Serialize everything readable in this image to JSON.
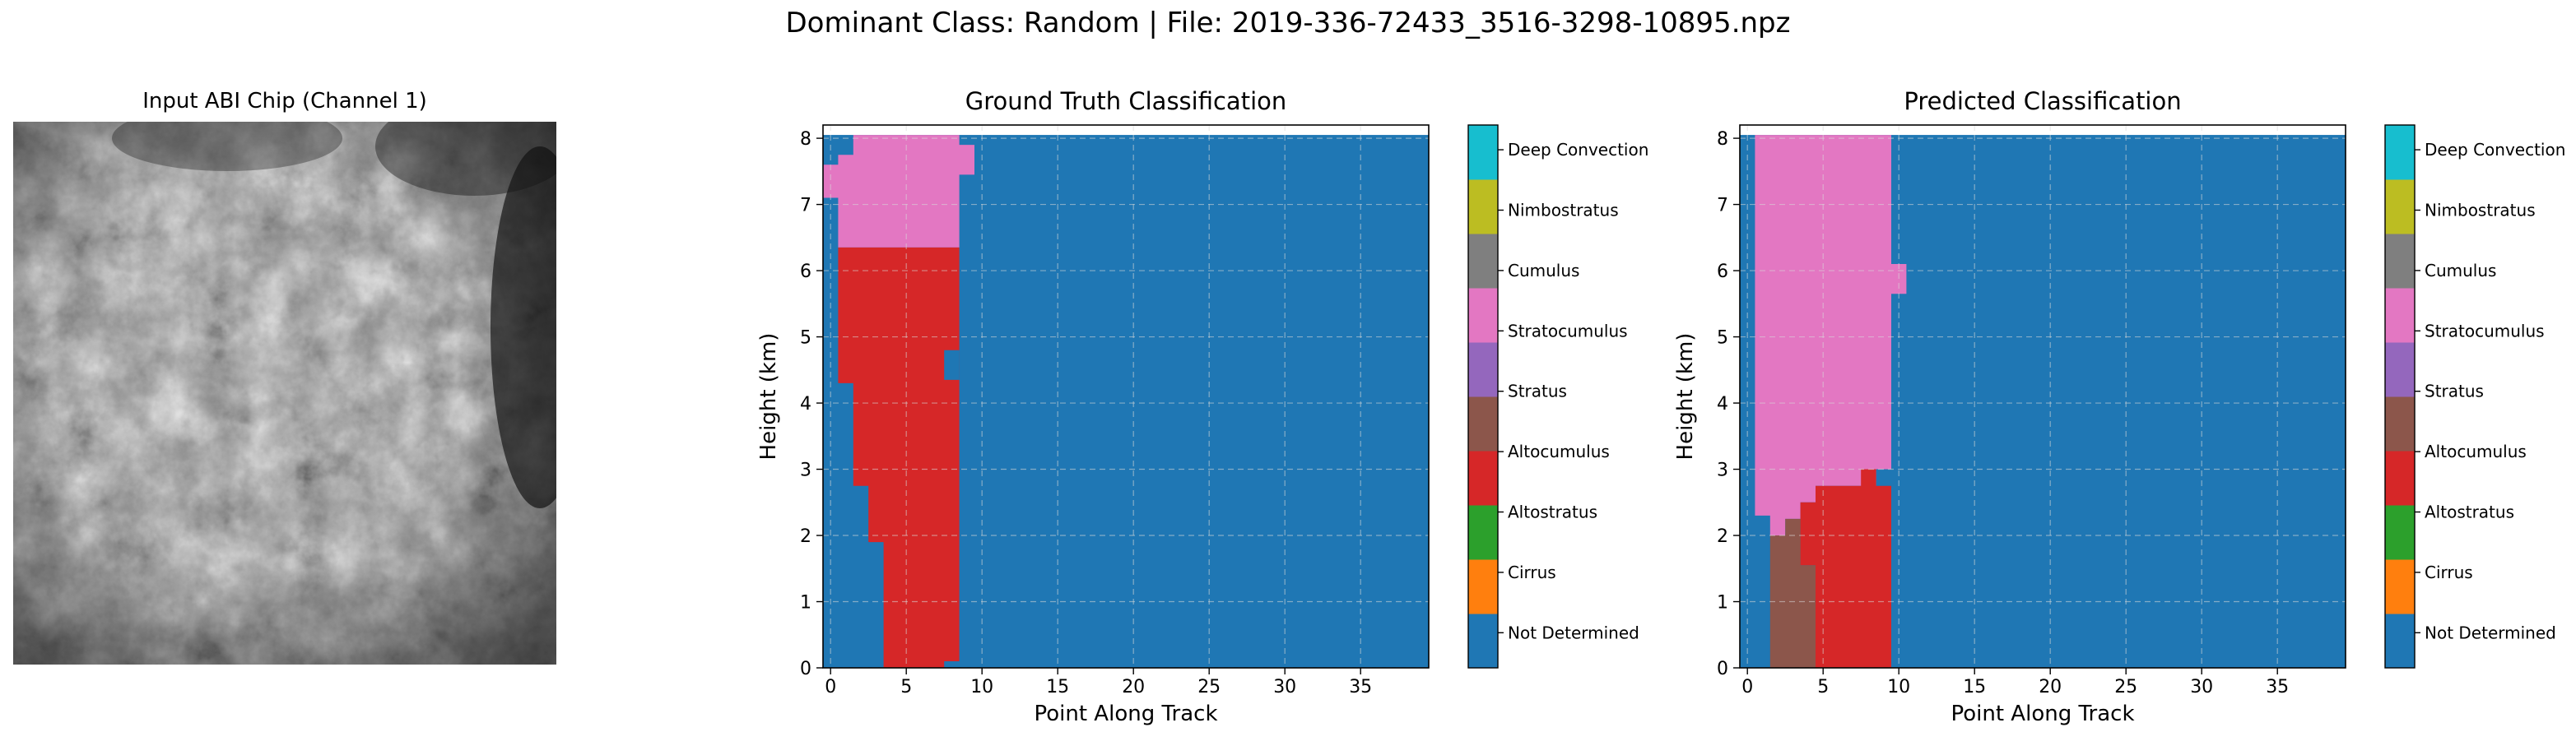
{
  "figure": {
    "suptitle": "Dominant Class: Random | File: 2019-336-72433_3516-3298-10895.npz",
    "chip_title": "Input ABI Chip (Channel 1)"
  },
  "colors": {
    "Not Determined": "#1f77b4",
    "Cirrus": "#ff7f0e",
    "Altostratus": "#2ca02c",
    "Altocumulus": "#d62728",
    "Stratus": "#9467bd",
    "Stratocumulus": "#8c564b",
    "Cumulus": "#e377c2",
    "Nimbostratus": "#7f7f7f",
    "Deep Convection": "#bcbd22",
    "cyan_top": "#17becf"
  },
  "chart_data": [
    {
      "type": "heatmap",
      "title": "Ground Truth Classification",
      "xlabel": "Point Along Track",
      "ylabel": "Height (km)",
      "xlim": [
        -0.5,
        39.5
      ],
      "ylim": [
        0,
        8.2
      ],
      "xticks": [
        0,
        5,
        10,
        15,
        20,
        25,
        30,
        35
      ],
      "yticks": [
        0,
        1,
        2,
        3,
        4,
        5,
        6,
        7,
        8
      ],
      "grid": true,
      "background_class": "Not Determined",
      "top_strip_ymax": 8.05,
      "regions": [
        {
          "class": "Cumulus",
          "polygon": [
            [
              1.5,
              8.05
            ],
            [
              8.5,
              8.05
            ],
            [
              8.5,
              7.9
            ],
            [
              9.5,
              7.9
            ],
            [
              9.5,
              7.45
            ],
            [
              8.5,
              7.45
            ],
            [
              8.5,
              6.35
            ],
            [
              0.5,
              6.35
            ],
            [
              0.5,
              7.1
            ],
            [
              -0.5,
              7.1
            ],
            [
              -0.5,
              7.6
            ],
            [
              0.5,
              7.6
            ],
            [
              0.5,
              7.75
            ],
            [
              1.5,
              7.75
            ]
          ]
        },
        {
          "class": "Altocumulus",
          "polygon": [
            [
              0.5,
              6.35
            ],
            [
              8.5,
              6.35
            ],
            [
              8.5,
              0.1
            ],
            [
              7.5,
              0.1
            ],
            [
              7.5,
              0
            ],
            [
              3.5,
              0
            ],
            [
              3.5,
              1.9
            ],
            [
              2.5,
              1.9
            ],
            [
              2.5,
              2.75
            ],
            [
              1.5,
              2.75
            ],
            [
              1.5,
              4.3
            ],
            [
              0.5,
              4.3
            ]
          ]
        },
        {
          "class": "Not Determined",
          "polygon": [
            [
              7.5,
              4.8
            ],
            [
              8.5,
              4.8
            ],
            [
              8.5,
              4.35
            ],
            [
              7.5,
              4.35
            ]
          ]
        }
      ],
      "legend": [
        "Not Determined",
        "Cirrus",
        "Altostratus",
        "Altocumulus",
        "Stratus",
        "Stratocumulus",
        "Cumulus",
        "Nimbostratus",
        "Deep Convection"
      ]
    },
    {
      "type": "heatmap",
      "title": "Predicted Classification",
      "xlabel": "Point Along Track",
      "ylabel": "Height (km)",
      "xlim": [
        -0.5,
        39.5
      ],
      "ylim": [
        0,
        8.2
      ],
      "xticks": [
        0,
        5,
        10,
        15,
        20,
        25,
        30,
        35
      ],
      "yticks": [
        0,
        1,
        2,
        3,
        4,
        5,
        6,
        7,
        8
      ],
      "grid": true,
      "background_class": "Not Determined",
      "top_strip_ymax": 8.05,
      "regions": [
        {
          "class": "Cumulus",
          "polygon": [
            [
              0.5,
              8.05
            ],
            [
              9.5,
              8.05
            ],
            [
              9.5,
              6.1
            ],
            [
              10.5,
              6.1
            ],
            [
              10.5,
              5.65
            ],
            [
              9.5,
              5.65
            ],
            [
              9.5,
              3.0
            ],
            [
              8.5,
              3.0
            ],
            [
              8.5,
              2.75
            ],
            [
              4.5,
              2.75
            ],
            [
              4.5,
              2.5
            ],
            [
              3.5,
              2.5
            ],
            [
              3.5,
              2.25
            ],
            [
              2.5,
              2.25
            ],
            [
              2.5,
              2.0
            ],
            [
              1.5,
              2.0
            ],
            [
              1.5,
              2.3
            ],
            [
              0.5,
              2.3
            ]
          ]
        },
        {
          "class": "Stratocumulus",
          "polygon": [
            [
              1.5,
              2.0
            ],
            [
              2.5,
              2.0
            ],
            [
              2.5,
              2.25
            ],
            [
              3.5,
              2.25
            ],
            [
              3.5,
              1.55
            ],
            [
              4.5,
              1.55
            ],
            [
              4.5,
              0
            ],
            [
              1.5,
              0
            ]
          ]
        },
        {
          "class": "Altocumulus",
          "polygon": [
            [
              3.5,
              2.25
            ],
            [
              3.5,
              2.5
            ],
            [
              4.5,
              2.5
            ],
            [
              4.5,
              2.75
            ],
            [
              7.5,
              2.75
            ],
            [
              7.5,
              3.0
            ],
            [
              8.5,
              3.0
            ],
            [
              8.5,
              2.75
            ],
            [
              9.5,
              2.75
            ],
            [
              9.5,
              0
            ],
            [
              4.5,
              0
            ],
            [
              4.5,
              1.55
            ],
            [
              3.5,
              1.55
            ]
          ]
        }
      ],
      "legend": [
        "Not Determined",
        "Cirrus",
        "Altostratus",
        "Altocumulus",
        "Stratus",
        "Stratocumulus",
        "Cumulus",
        "Nimbostratus",
        "Deep Convection"
      ]
    }
  ]
}
